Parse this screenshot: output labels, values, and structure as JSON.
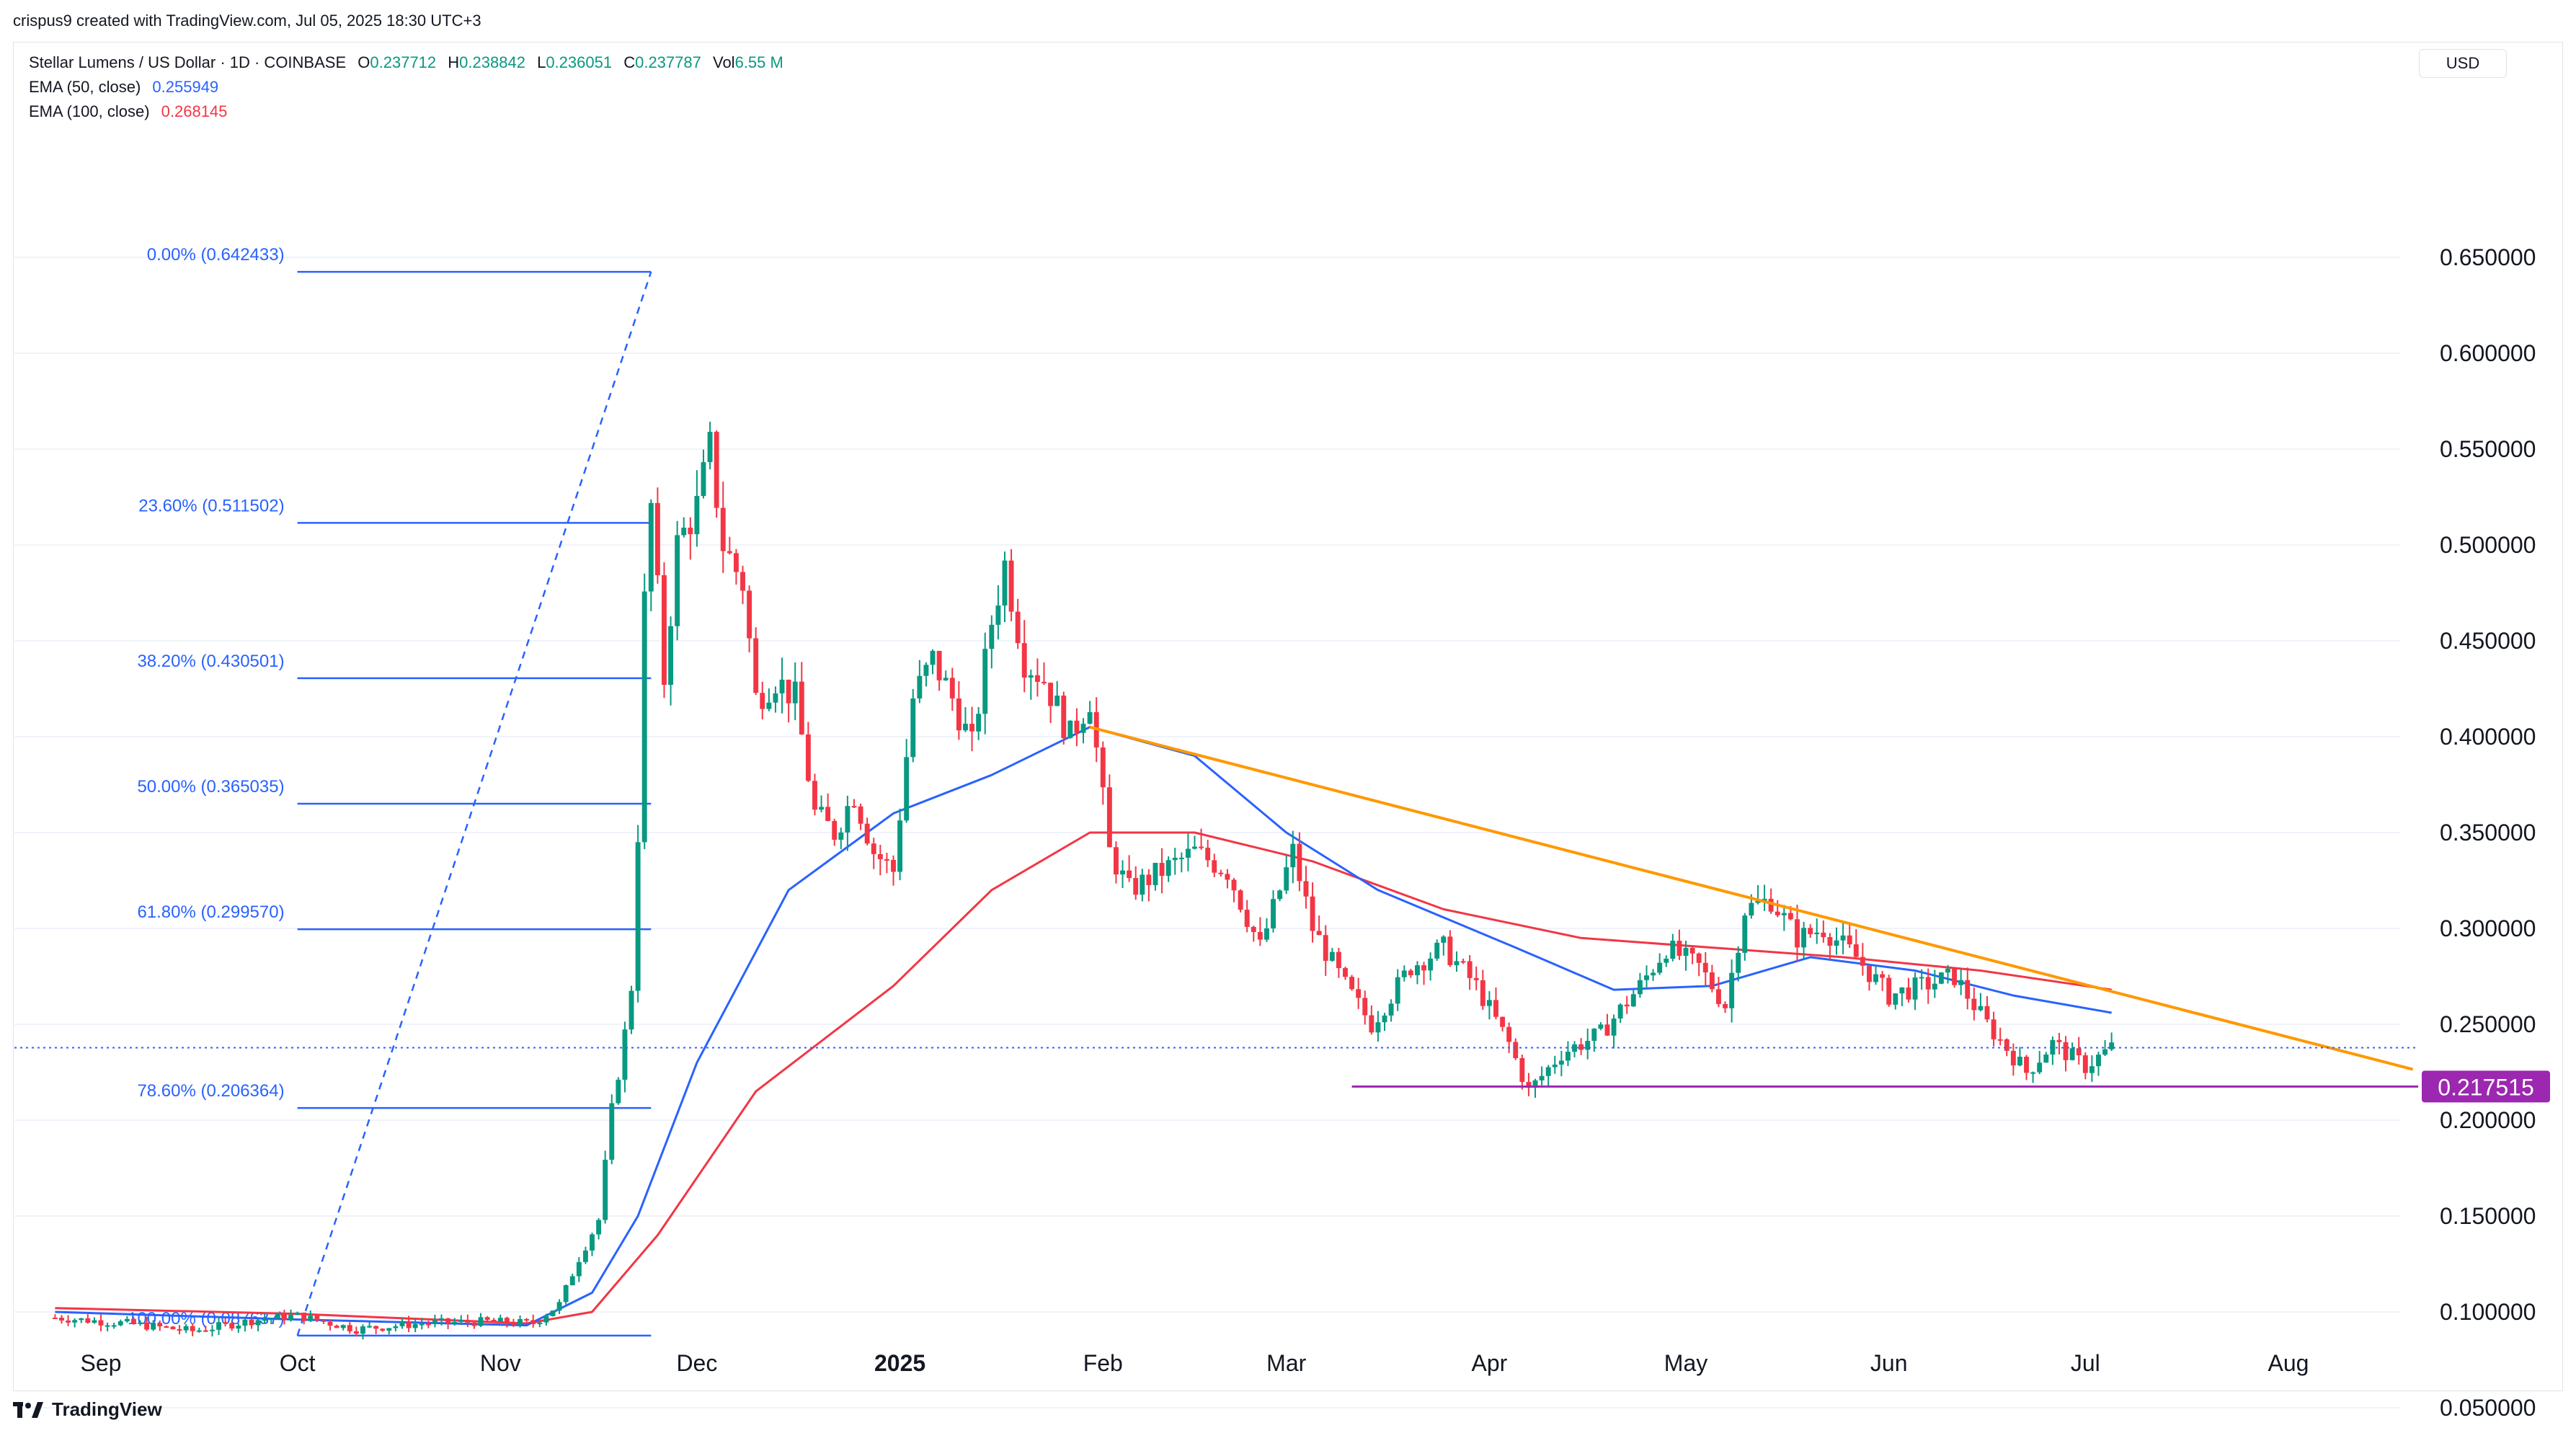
{
  "header": {
    "title": "crispus9 created with TradingView.com, Jul 05, 2025 18:30 UTC+3"
  },
  "legend": {
    "symbol": "Stellar Lumens / US Dollar · 1D · COINBASE",
    "o_label": "O",
    "o": "0.237712",
    "h_label": "H",
    "h": "0.238842",
    "l_label": "L",
    "l": "0.236051",
    "c_label": "C",
    "c": "0.237787",
    "vol_label": "Vol",
    "vol": "6.55 M",
    "ema50_label": "EMA (50, close)",
    "ema50_value": "0.255949",
    "ema100_label": "EMA (100, close)",
    "ema100_value": "0.268145"
  },
  "currency": "USD",
  "footer": {
    "brand": "TradingView"
  },
  "colors": {
    "up": "#089981",
    "down": "#f23645",
    "ema50": "#2962ff",
    "ema100": "#f23645",
    "fib": "#2962ff",
    "trend": "#ff9800",
    "support": "#9c27b0",
    "grid": "#f0f3fa"
  },
  "chart_data": {
    "type": "candlestick",
    "title": "Stellar Lumens / US Dollar · 1D · COINBASE",
    "y_ticks": [
      "0.650000",
      "0.600000",
      "0.550000",
      "0.500000",
      "0.450000",
      "0.400000",
      "0.350000",
      "0.300000",
      "0.250000",
      "0.200000",
      "0.150000",
      "0.100000",
      "0.050000"
    ],
    "y_tick_values": [
      0.65,
      0.6,
      0.55,
      0.5,
      0.45,
      0.4,
      0.35,
      0.3,
      0.25,
      0.2,
      0.15,
      0.1,
      0.05
    ],
    "x_ticks": [
      {
        "label": "Sep",
        "date": "2024-09-01"
      },
      {
        "label": "Oct",
        "date": "2024-10-01"
      },
      {
        "label": "Nov",
        "date": "2024-11-01"
      },
      {
        "label": "Dec",
        "date": "2024-12-01"
      },
      {
        "label": "2025",
        "date": "2025-01-01",
        "bold": true
      },
      {
        "label": "Feb",
        "date": "2025-02-01"
      },
      {
        "label": "Mar",
        "date": "2025-03-01"
      },
      {
        "label": "Apr",
        "date": "2025-04-01"
      },
      {
        "label": "May",
        "date": "2025-05-01"
      },
      {
        "label": "Jun",
        "date": "2025-06-01"
      },
      {
        "label": "Jul",
        "date": "2025-07-01"
      },
      {
        "label": "Aug",
        "date": "2025-08-01"
      }
    ],
    "ylim": [
      0.0,
      0.68
    ],
    "price_series": [
      [
        "2024-08-25",
        0.097
      ],
      [
        "2024-09-05",
        0.094
      ],
      [
        "2024-09-15",
        0.09
      ],
      [
        "2024-09-25",
        0.096
      ],
      [
        "2024-10-01",
        0.098
      ],
      [
        "2024-10-10",
        0.091
      ],
      [
        "2024-10-20",
        0.094
      ],
      [
        "2024-10-30",
        0.095
      ],
      [
        "2024-11-06",
        0.094
      ],
      [
        "2024-11-10",
        0.104
      ],
      [
        "2024-11-13",
        0.128
      ],
      [
        "2024-11-16",
        0.148
      ],
      [
        "2024-11-18",
        0.205
      ],
      [
        "2024-11-20",
        0.245
      ],
      [
        "2024-11-21",
        0.27
      ],
      [
        "2024-11-22",
        0.35
      ],
      [
        "2024-11-23",
        0.47
      ],
      [
        "2024-11-24",
        0.52
      ],
      [
        "2024-11-26",
        0.43
      ],
      [
        "2024-11-28",
        0.5
      ],
      [
        "2024-12-01",
        0.52
      ],
      [
        "2024-12-03",
        0.55
      ],
      [
        "2024-12-05",
        0.5
      ],
      [
        "2024-12-08",
        0.48
      ],
      [
        "2024-12-10",
        0.42
      ],
      [
        "2024-12-13",
        0.43
      ],
      [
        "2024-12-16",
        0.42
      ],
      [
        "2024-12-19",
        0.36
      ],
      [
        "2024-12-22",
        0.35
      ],
      [
        "2024-12-25",
        0.37
      ],
      [
        "2024-12-28",
        0.34
      ],
      [
        "2024-12-31",
        0.33
      ],
      [
        "2025-01-03",
        0.42
      ],
      [
        "2025-01-06",
        0.44
      ],
      [
        "2025-01-09",
        0.42
      ],
      [
        "2025-01-12",
        0.395
      ],
      [
        "2025-01-15",
        0.46
      ],
      [
        "2025-01-17",
        0.49
      ],
      [
        "2025-01-20",
        0.44
      ],
      [
        "2025-01-23",
        0.43
      ],
      [
        "2025-01-27",
        0.4
      ],
      [
        "2025-01-30",
        0.42
      ],
      [
        "2025-02-02",
        0.34
      ],
      [
        "2025-02-05",
        0.32
      ],
      [
        "2025-02-10",
        0.33
      ],
      [
        "2025-02-15",
        0.34
      ],
      [
        "2025-02-20",
        0.33
      ],
      [
        "2025-02-25",
        0.29
      ],
      [
        "2025-03-02",
        0.34
      ],
      [
        "2025-03-05",
        0.3
      ],
      [
        "2025-03-10",
        0.27
      ],
      [
        "2025-03-14",
        0.25
      ],
      [
        "2025-03-20",
        0.28
      ],
      [
        "2025-03-25",
        0.29
      ],
      [
        "2025-03-30",
        0.27
      ],
      [
        "2025-04-04",
        0.24
      ],
      [
        "2025-04-07",
        0.215
      ],
      [
        "2025-04-12",
        0.235
      ],
      [
        "2025-04-18",
        0.245
      ],
      [
        "2025-04-24",
        0.27
      ],
      [
        "2025-04-28",
        0.29
      ],
      [
        "2025-05-03",
        0.28
      ],
      [
        "2025-05-07",
        0.26
      ],
      [
        "2025-05-10",
        0.31
      ],
      [
        "2025-05-14",
        0.315
      ],
      [
        "2025-05-18",
        0.295
      ],
      [
        "2025-05-22",
        0.3
      ],
      [
        "2025-05-27",
        0.285
      ],
      [
        "2025-06-01",
        0.265
      ],
      [
        "2025-06-06",
        0.27
      ],
      [
        "2025-06-11",
        0.275
      ],
      [
        "2025-06-16",
        0.25
      ],
      [
        "2025-06-22",
        0.225
      ],
      [
        "2025-06-26",
        0.24
      ],
      [
        "2025-07-01",
        0.228
      ],
      [
        "2025-07-05",
        0.2378
      ]
    ],
    "ema50_series": [
      [
        "2024-08-25",
        0.1
      ],
      [
        "2024-10-01",
        0.096
      ],
      [
        "2024-11-05",
        0.093
      ],
      [
        "2024-11-15",
        0.11
      ],
      [
        "2024-11-22",
        0.15
      ],
      [
        "2024-12-01",
        0.23
      ],
      [
        "2024-12-15",
        0.32
      ],
      [
        "2024-12-31",
        0.36
      ],
      [
        "2025-01-15",
        0.38
      ],
      [
        "2025-01-30",
        0.405
      ],
      [
        "2025-02-15",
        0.39
      ],
      [
        "2025-03-01",
        0.35
      ],
      [
        "2025-03-15",
        0.32
      ],
      [
        "2025-04-05",
        0.29
      ],
      [
        "2025-04-20",
        0.268
      ],
      [
        "2025-05-05",
        0.27
      ],
      [
        "2025-05-20",
        0.285
      ],
      [
        "2025-06-05",
        0.278
      ],
      [
        "2025-06-20",
        0.265
      ],
      [
        "2025-07-05",
        0.256
      ]
    ],
    "ema100_series": [
      [
        "2024-08-25",
        0.102
      ],
      [
        "2024-10-01",
        0.099
      ],
      [
        "2024-11-05",
        0.094
      ],
      [
        "2024-11-15",
        0.1
      ],
      [
        "2024-11-25",
        0.14
      ],
      [
        "2024-12-10",
        0.215
      ],
      [
        "2024-12-31",
        0.27
      ],
      [
        "2025-01-15",
        0.32
      ],
      [
        "2025-01-30",
        0.35
      ],
      [
        "2025-02-15",
        0.35
      ],
      [
        "2025-03-05",
        0.335
      ],
      [
        "2025-03-25",
        0.31
      ],
      [
        "2025-04-15",
        0.295
      ],
      [
        "2025-05-05",
        0.29
      ],
      [
        "2025-05-25",
        0.285
      ],
      [
        "2025-06-15",
        0.278
      ],
      [
        "2025-07-05",
        0.268
      ]
    ],
    "fib_levels": [
      {
        "label": "0.00% (0.642433)",
        "value": 0.642433
      },
      {
        "label": "23.60% (0.511502)",
        "value": 0.511502
      },
      {
        "label": "38.20% (0.430501)",
        "value": 0.430501
      },
      {
        "label": "50.00% (0.365035)",
        "value": 0.365035
      },
      {
        "label": "61.80% (0.299570)",
        "value": 0.29957
      },
      {
        "label": "78.60% (0.206364)",
        "value": 0.206364
      },
      {
        "label": "100.00% (0.087637)",
        "value": 0.087637
      }
    ],
    "fib_range": {
      "start": "2024-10-01",
      "end": "2024-11-24"
    },
    "trendline": {
      "from": {
        "date": "2025-01-30",
        "value": 0.405
      },
      "to": {
        "date": "2025-08-20",
        "value": 0.2265
      }
    },
    "support": {
      "from": "2025-03-11",
      "to": "2025-08-25",
      "value": 0.217515,
      "label": "0.217515"
    },
    "last_price": 0.237787
  }
}
